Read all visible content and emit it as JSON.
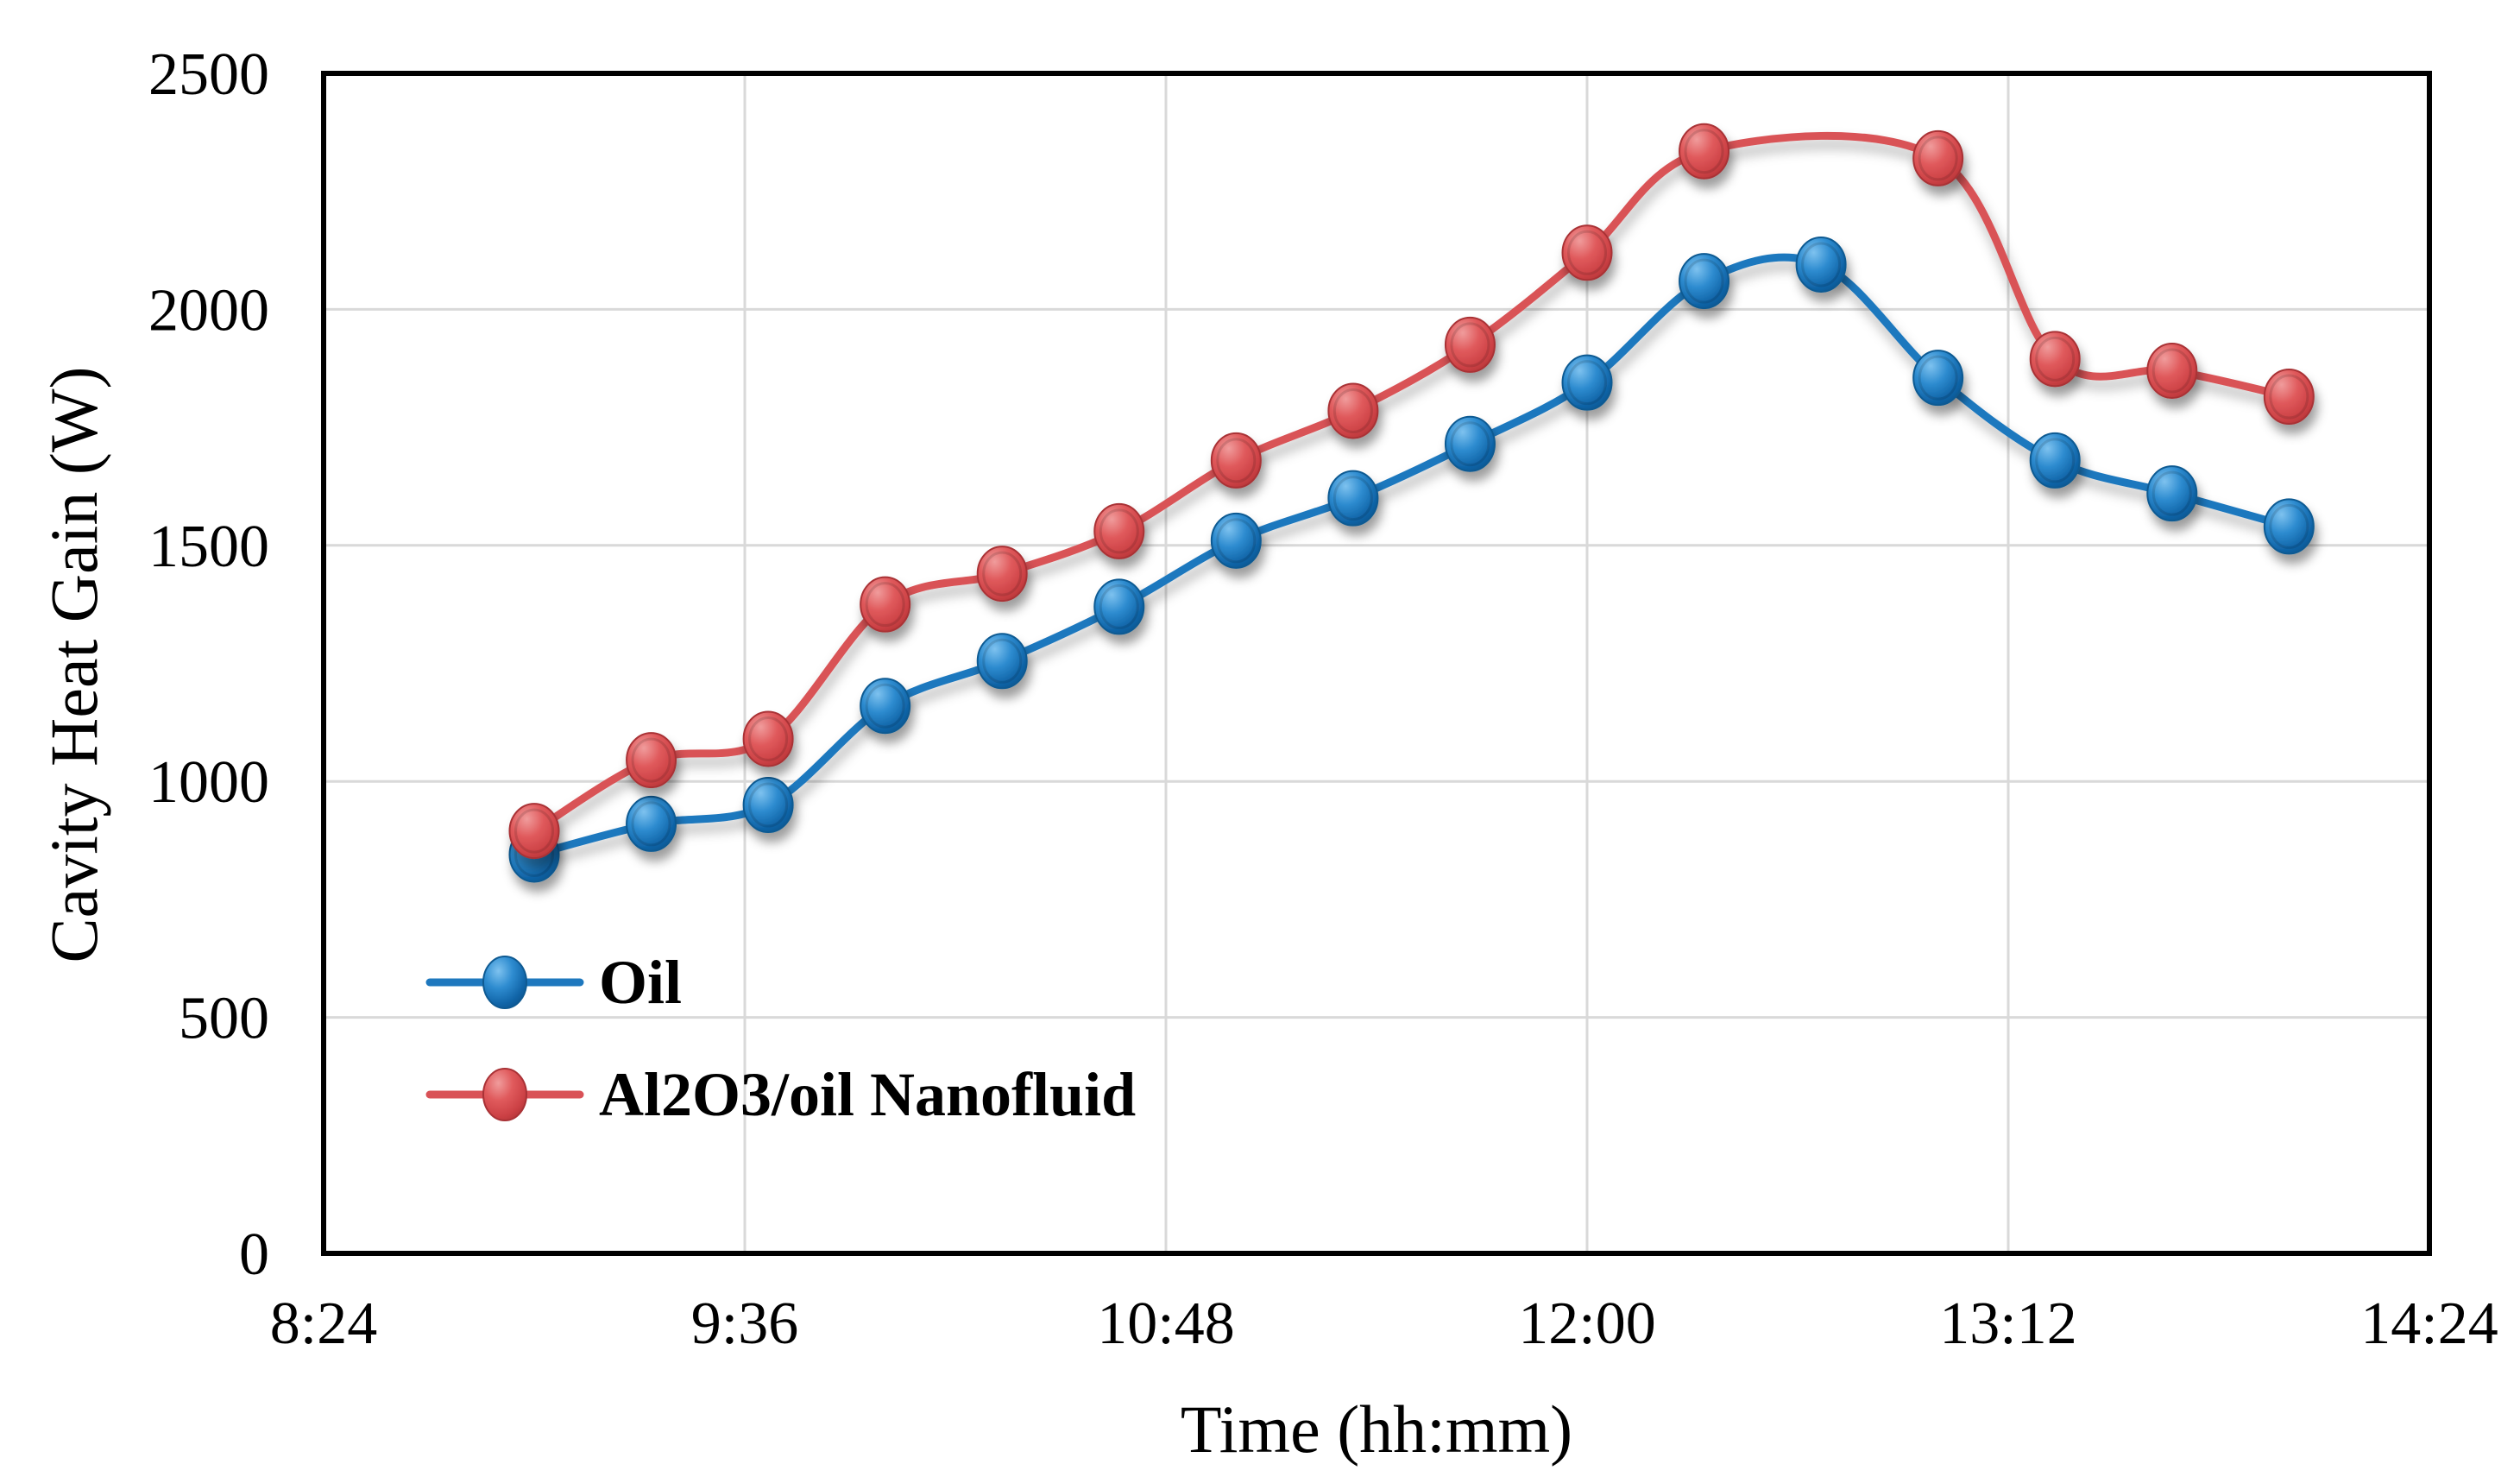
{
  "chart_data": {
    "type": "line",
    "title": "",
    "xlabel": "Time (hh:mm)",
    "ylabel": "Cavity Heat Gain (W)",
    "xlim_minutes": [
      504,
      864
    ],
    "ylim": [
      0,
      2500
    ],
    "grid": true,
    "legend_position": "inside-left-lower",
    "x_ticks": [
      {
        "label": "8:24",
        "minutes": 504
      },
      {
        "label": "9:36",
        "minutes": 576
      },
      {
        "label": "10:48",
        "minutes": 648
      },
      {
        "label": "12:00",
        "minutes": 720
      },
      {
        "label": "13:12",
        "minutes": 792
      },
      {
        "label": "14:24",
        "minutes": 864
      }
    ],
    "y_ticks": [
      0,
      500,
      1000,
      1500,
      2000,
      2500
    ],
    "x": [
      "9:00",
      "9:20",
      "9:40",
      "10:00",
      "10:20",
      "10:40",
      "11:00",
      "11:20",
      "11:40",
      "12:00",
      "12:20",
      "12:40",
      "13:00",
      "13:20",
      "13:40",
      "14:00"
    ],
    "x_minutes": [
      540,
      560,
      580,
      600,
      620,
      640,
      660,
      680,
      700,
      720,
      740,
      760,
      780,
      800,
      820,
      840
    ],
    "series": [
      {
        "name": "Oil",
        "line_color": "#1E78BE",
        "marker_rim": "#0F5A92",
        "marker_gradient": [
          "#7EC2EF",
          "#2E8CD0",
          "#1165A8",
          "#0C5591"
        ],
        "values": [
          845,
          910,
          950,
          1160,
          1255,
          1370,
          1510,
          1600,
          1715,
          1845,
          2060,
          2095,
          1855,
          1680,
          1610,
          1540
        ]
      },
      {
        "name": "Al2O3/oil Nanofluid",
        "line_color": "#D95257",
        "marker_rim": "#A93236",
        "marker_gradient": [
          "#F09C9C",
          "#E05A5C",
          "#CC4145",
          "#B53538"
        ],
        "values": [
          895,
          1045,
          1090,
          1375,
          1440,
          1530,
          1680,
          1785,
          1925,
          2120,
          2335,
          null,
          2320,
          1895,
          1870,
          1815
        ]
      }
    ],
    "colors": {
      "background": "#FFFFFF",
      "gridline": "#D9D9D9",
      "plot_border": "#000000",
      "text": "#000000"
    }
  }
}
